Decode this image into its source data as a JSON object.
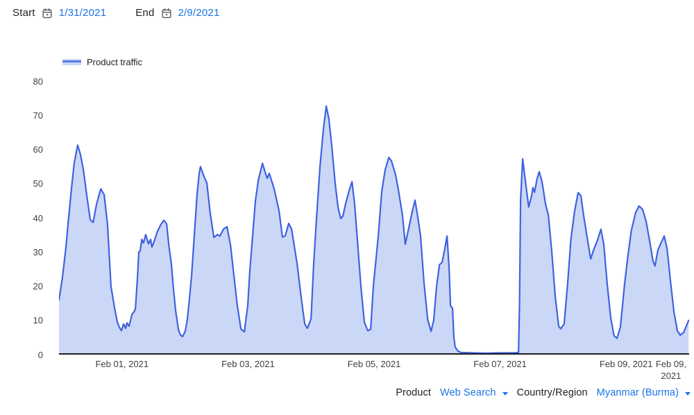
{
  "header": {
    "start_label": "Start",
    "start_date": "1/31/2021",
    "end_label": "End",
    "end_date": "2/9/2021"
  },
  "legend": {
    "label": "Product traffic"
  },
  "footer": {
    "product_label": "Product",
    "product_value": "Web Search",
    "region_label": "Country/Region",
    "region_value": "Myanmar (Burma)"
  },
  "colors": {
    "line": "#3e62de",
    "fill": "#cbd7f6",
    "link": "#1a73e8",
    "axis": "#1f1f1f",
    "tick_text": "#3c4043"
  },
  "chart_data": {
    "type": "area",
    "title": "Product traffic",
    "legend_position": "top-left",
    "grid": false,
    "x_unit": "hours since Jan 31, 2021 00:00",
    "xlim": [
      0,
      240
    ],
    "ylim": [
      0,
      80
    ],
    "yticks": [
      0,
      10,
      20,
      30,
      40,
      50,
      60,
      70,
      80
    ],
    "xticks": [
      {
        "label": "Feb 01, 2021",
        "t": 24
      },
      {
        "label": "Feb 03, 2021",
        "t": 72
      },
      {
        "label": "Feb 05, 2021",
        "t": 120
      },
      {
        "label": "Feb 07, 2021",
        "t": 168
      },
      {
        "label": "Feb 09, 2021",
        "t": 216
      },
      {
        "label": "Feb 09, 2021",
        "t": 233.1,
        "wrap": true
      }
    ],
    "series": [
      {
        "name": "Product traffic",
        "points": [
          [
            0,
            16
          ],
          [
            1.3,
            22.5
          ],
          [
            2.6,
            31
          ],
          [
            3.4,
            38
          ],
          [
            4.8,
            49
          ],
          [
            5.8,
            56
          ],
          [
            7.1,
            61.3
          ],
          [
            8.2,
            58.5
          ],
          [
            9.3,
            54
          ],
          [
            10.6,
            46.5
          ],
          [
            11.9,
            39.5
          ],
          [
            13,
            38.7
          ],
          [
            14.3,
            44
          ],
          [
            15.9,
            48.5
          ],
          [
            17.2,
            46.8
          ],
          [
            18.5,
            38
          ],
          [
            19.8,
            20
          ],
          [
            21.1,
            14
          ],
          [
            22.2,
            9.5
          ],
          [
            23,
            8
          ],
          [
            23.8,
            7
          ],
          [
            24.6,
            9
          ],
          [
            25.4,
            7.7
          ],
          [
            25.9,
            9.3
          ],
          [
            26.7,
            8.3
          ],
          [
            27.8,
            11.8
          ],
          [
            28.5,
            12.4
          ],
          [
            29.1,
            13.4
          ],
          [
            29.9,
            22.5
          ],
          [
            30.4,
            30
          ],
          [
            30.9,
            30.3
          ],
          [
            31.5,
            33.7
          ],
          [
            32.2,
            32.7
          ],
          [
            33,
            35.1
          ],
          [
            33.6,
            33.7
          ],
          [
            34.1,
            32.4
          ],
          [
            34.9,
            33.7
          ],
          [
            35.4,
            31.5
          ],
          [
            36.2,
            33.1
          ],
          [
            37.5,
            36.1
          ],
          [
            38.9,
            38.2
          ],
          [
            39.9,
            39.3
          ],
          [
            41,
            38.3
          ],
          [
            41.8,
            32.3
          ],
          [
            42.8,
            26.6
          ],
          [
            43.6,
            19.1
          ],
          [
            44.4,
            13
          ],
          [
            45.5,
            7.3
          ],
          [
            46.3,
            5.7
          ],
          [
            47.1,
            5.3
          ],
          [
            48.1,
            6.9
          ],
          [
            48.9,
            10.4
          ],
          [
            49.7,
            16.4
          ],
          [
            50.5,
            23.2
          ],
          [
            51,
            28.6
          ],
          [
            51.8,
            38
          ],
          [
            52.6,
            47
          ],
          [
            53.4,
            53
          ],
          [
            53.9,
            55
          ],
          [
            55,
            52.5
          ],
          [
            56.3,
            50.3
          ],
          [
            57.6,
            41.4
          ],
          [
            59,
            34.3
          ],
          [
            60.3,
            35.1
          ],
          [
            61.3,
            34.7
          ],
          [
            62.7,
            36.8
          ],
          [
            64,
            37.4
          ],
          [
            65.3,
            32.1
          ],
          [
            66.6,
            23.2
          ],
          [
            67.9,
            14.4
          ],
          [
            69.3,
            7.5
          ],
          [
            70.6,
            6.7
          ],
          [
            71.9,
            14.4
          ],
          [
            72.7,
            24.6
          ],
          [
            73.8,
            35.3
          ],
          [
            74.8,
            44.9
          ],
          [
            75.9,
            51
          ],
          [
            77.5,
            56
          ],
          [
            78.5,
            53.4
          ],
          [
            79.3,
            51.6
          ],
          [
            80.1,
            53
          ],
          [
            81.9,
            48.6
          ],
          [
            83.8,
            42.2
          ],
          [
            85.1,
            34.4
          ],
          [
            86.2,
            34.8
          ],
          [
            87.5,
            38.4
          ],
          [
            88.6,
            36.7
          ],
          [
            90.7,
            26.6
          ],
          [
            92.3,
            16.4
          ],
          [
            93.6,
            9
          ],
          [
            94.6,
            7.7
          ],
          [
            96,
            10.5
          ],
          [
            97,
            26.6
          ],
          [
            98.1,
            40
          ],
          [
            99.4,
            55
          ],
          [
            100.7,
            66
          ],
          [
            101.8,
            72.7
          ],
          [
            102.8,
            69
          ],
          [
            103.9,
            61
          ],
          [
            105.2,
            50
          ],
          [
            106.3,
            43
          ],
          [
            107.3,
            39.8
          ],
          [
            108.1,
            40.5
          ],
          [
            109.2,
            44.2
          ],
          [
            110.5,
            48
          ],
          [
            111.6,
            50.6
          ],
          [
            112.6,
            44
          ],
          [
            113.7,
            33
          ],
          [
            115,
            19.8
          ],
          [
            116.3,
            9.5
          ],
          [
            117.6,
            7
          ],
          [
            118.7,
            7.4
          ],
          [
            119.7,
            19.9
          ],
          [
            121.6,
            34.7
          ],
          [
            122.9,
            47.6
          ],
          [
            124.2,
            54
          ],
          [
            125.6,
            57.7
          ],
          [
            126.6,
            56.7
          ],
          [
            128.2,
            52.6
          ],
          [
            129.3,
            48
          ],
          [
            130.8,
            40.8
          ],
          [
            131.9,
            32.3
          ],
          [
            133.5,
            38.1
          ],
          [
            134.6,
            42
          ],
          [
            135.6,
            45.2
          ],
          [
            136.7,
            40
          ],
          [
            137.7,
            34.7
          ],
          [
            139,
            21.2
          ],
          [
            140.4,
            10.4
          ],
          [
            141.7,
            6.8
          ],
          [
            142.7,
            10
          ],
          [
            143.8,
            19.8
          ],
          [
            144.9,
            26.3
          ],
          [
            145.9,
            27
          ],
          [
            146.7,
            30
          ],
          [
            147.8,
            34.7
          ],
          [
            148.6,
            25
          ],
          [
            149.1,
            14.4
          ],
          [
            149.9,
            13.5
          ],
          [
            150.4,
            5
          ],
          [
            150.9,
            2.2
          ],
          [
            152,
            1
          ],
          [
            153.3,
            0.6
          ],
          [
            157.3,
            0.5
          ],
          [
            162.6,
            0.4
          ],
          [
            167.8,
            0.5
          ],
          [
            173.1,
            0.5
          ],
          [
            175,
            0.6
          ],
          [
            175.4,
            15
          ],
          [
            175.8,
            45
          ],
          [
            176.6,
            57.3
          ],
          [
            177.6,
            51
          ],
          [
            178.9,
            43.2
          ],
          [
            180,
            46.5
          ],
          [
            180.5,
            48.9
          ],
          [
            181.1,
            47.5
          ],
          [
            182.1,
            51.5
          ],
          [
            182.9,
            53.5
          ],
          [
            184,
            50.5
          ],
          [
            185.3,
            44
          ],
          [
            186.4,
            40.8
          ],
          [
            187.7,
            30
          ],
          [
            189,
            17.1
          ],
          [
            190.3,
            8.3
          ],
          [
            191.1,
            7.6
          ],
          [
            192.4,
            9
          ],
          [
            193.7,
            20.5
          ],
          [
            195,
            34.1
          ],
          [
            196.4,
            42
          ],
          [
            197.7,
            47.4
          ],
          [
            198.8,
            46.5
          ],
          [
            199.8,
            40.8
          ],
          [
            201.2,
            34.1
          ],
          [
            202.5,
            28
          ],
          [
            203.8,
            31
          ],
          [
            205.1,
            33.5
          ],
          [
            206.4,
            36.7
          ],
          [
            207.5,
            32.3
          ],
          [
            208.8,
            20.5
          ],
          [
            210.1,
            11
          ],
          [
            211.4,
            5.5
          ],
          [
            212.5,
            4.8
          ],
          [
            213.8,
            8
          ],
          [
            215.4,
            20.5
          ],
          [
            216.7,
            29
          ],
          [
            218,
            36.4
          ],
          [
            219.6,
            41.5
          ],
          [
            220.9,
            43.5
          ],
          [
            222.3,
            42.5
          ],
          [
            223.6,
            39
          ],
          [
            224.9,
            33.5
          ],
          [
            226.2,
            27.5
          ],
          [
            227,
            25.9
          ],
          [
            228.1,
            30.6
          ],
          [
            229.2,
            32.5
          ],
          [
            230.5,
            34.7
          ],
          [
            231.6,
            31
          ],
          [
            232.9,
            21.5
          ],
          [
            234.2,
            12.5
          ],
          [
            235.5,
            7
          ],
          [
            236.6,
            5.7
          ],
          [
            237.9,
            6.5
          ],
          [
            239,
            8.5
          ],
          [
            239.8,
            10
          ]
        ]
      }
    ]
  }
}
